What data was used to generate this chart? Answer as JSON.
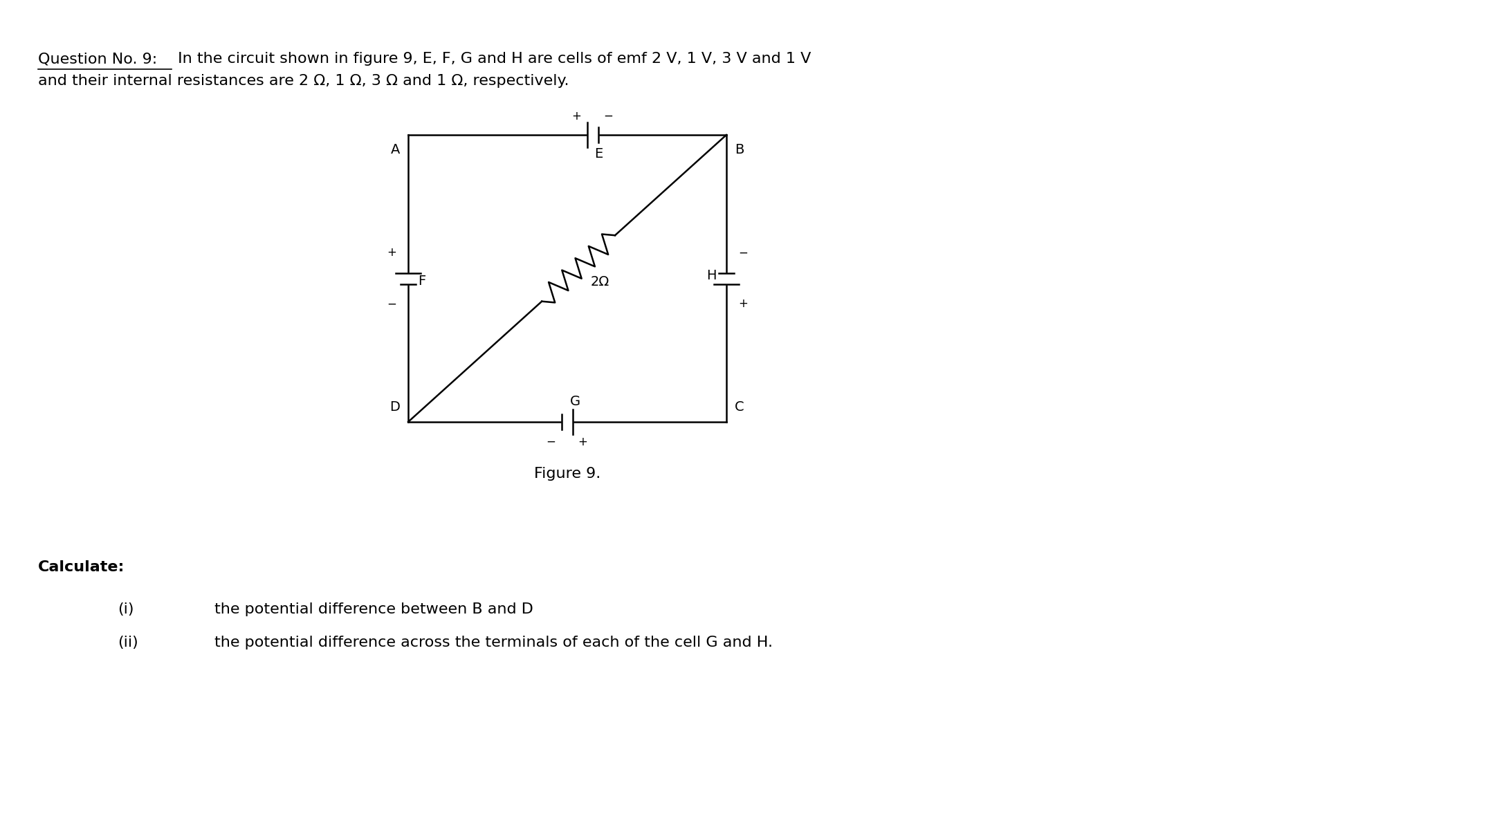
{
  "title_prefix": "Question No. 9:",
  "title_prefix_underline": "Question No. 9",
  "title_rest": " In the circuit shown in figure 9, E, F, G and H are cells of emf 2 V, 1 V, 3 V and 1 V",
  "title_line2": "and their internal resistances are 2 Ω, 1 Ω, 3 Ω and 1 Ω, respectively.",
  "fig_caption": "Figure 9.",
  "calc_label": "Calculate:",
  "item_i_num": "(i)",
  "item_i": "the potential difference between B and D",
  "item_ii_num": "(ii)",
  "item_ii": "the potential difference across the terminals of each of the cell G and H.",
  "bg_color": "#ffffff",
  "text_color": "#000000",
  "font_size_main": 16,
  "font_size_circuit": 14,
  "font_size_pm": 12,
  "lw_circuit": 1.8
}
